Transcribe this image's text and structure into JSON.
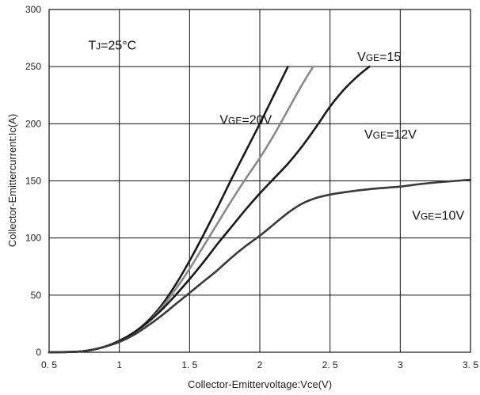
{
  "chart_data": {
    "type": "line",
    "xlabel": "Collector-Emittervoltage:Vce(V)",
    "ylabel": "Collector-Emittercurrent:Ic(A)",
    "xlim": [
      0.5,
      3.5
    ],
    "ylim": [
      0,
      300
    ],
    "xticks": [
      {
        "value": 0.5,
        "label": "0. 5"
      },
      {
        "value": 1,
        "label": "1"
      },
      {
        "value": 1.5,
        "label": "1. 5"
      },
      {
        "value": 2,
        "label": "2"
      },
      {
        "value": 2.5,
        "label": "2. 5"
      },
      {
        "value": 3,
        "label": "3"
      },
      {
        "value": 3.5,
        "label": "3. 5"
      }
    ],
    "yticks": [
      {
        "value": 0,
        "label": "0"
      },
      {
        "value": 50,
        "label": "50"
      },
      {
        "value": 100,
        "label": "100"
      },
      {
        "value": 150,
        "label": "150"
      },
      {
        "value": 200,
        "label": "200"
      },
      {
        "value": 250,
        "label": "250"
      },
      {
        "value": 300,
        "label": "300"
      }
    ],
    "grid": true,
    "legend": "none",
    "series": [
      {
        "name": "VGE=20V",
        "color": "#1a1a1a",
        "x": [
          0.5,
          0.7,
          0.8,
          0.9,
          1.0,
          1.1,
          1.2,
          1.3,
          1.4,
          1.5,
          1.6,
          1.7,
          1.8,
          1.9,
          2.0,
          2.1,
          2.2
        ],
        "y": [
          0,
          0.5,
          2,
          5,
          10,
          17,
          27,
          41,
          59,
          80,
          103,
          127,
          152,
          176,
          200,
          225,
          250
        ]
      },
      {
        "name": "VGE=15",
        "color": "#8a8a8a",
        "x": [
          0.5,
          0.7,
          0.8,
          0.9,
          1.0,
          1.1,
          1.2,
          1.3,
          1.4,
          1.5,
          1.6,
          1.7,
          1.8,
          1.9,
          2.0,
          2.1,
          2.2,
          2.3,
          2.38
        ],
        "y": [
          0,
          0.5,
          2,
          5,
          10,
          17,
          26,
          39,
          55,
          73,
          93,
          113,
          133,
          152,
          170,
          190,
          212,
          234,
          250
        ]
      },
      {
        "name": "VGE=12V",
        "color": "#1a1a1a",
        "x": [
          0.5,
          0.7,
          0.8,
          0.9,
          1.0,
          1.1,
          1.2,
          1.3,
          1.4,
          1.5,
          1.6,
          1.7,
          1.8,
          1.9,
          2.0,
          2.1,
          2.2,
          2.3,
          2.4,
          2.5,
          2.6,
          2.7,
          2.78
        ],
        "y": [
          0,
          0.5,
          2,
          5,
          10,
          17,
          26,
          37,
          50,
          64,
          79,
          95,
          110,
          125,
          139,
          152,
          165,
          180,
          197,
          215,
          230,
          242,
          250
        ]
      },
      {
        "name": "VGE=10V",
        "color": "#3a3a3a",
        "x": [
          0.5,
          0.7,
          0.8,
          0.9,
          1.0,
          1.1,
          1.2,
          1.3,
          1.4,
          1.5,
          1.6,
          1.7,
          1.8,
          1.9,
          2.0,
          2.1,
          2.2,
          2.3,
          2.4,
          2.5,
          2.6,
          2.8,
          3.0,
          3.2,
          3.5
        ],
        "y": [
          0,
          0.5,
          2,
          5,
          9,
          15,
          23,
          32,
          42,
          52,
          62,
          72,
          83,
          93,
          102,
          112,
          122,
          130,
          135,
          138,
          140,
          143,
          145,
          148,
          151
        ]
      }
    ],
    "annotations": [
      {
        "id": "tj",
        "main": "T",
        "sub": "J",
        "rest": "=25°C",
        "x": 0.95,
        "y": 265
      },
      {
        "id": "vge20",
        "main": "V",
        "sub": "GE",
        "rest": "=20V",
        "x": 1.9,
        "y": 200
      },
      {
        "id": "vge15",
        "main": "V",
        "sub": "GE",
        "rest": "=15",
        "x": 2.85,
        "y": 255
      },
      {
        "id": "vge12",
        "main": "V",
        "sub": "GE",
        "rest": "=12V",
        "x": 2.93,
        "y": 187
      },
      {
        "id": "vge10",
        "main": "V",
        "sub": "GE",
        "rest": "=10V",
        "x": 3.27,
        "y": 116
      }
    ]
  }
}
